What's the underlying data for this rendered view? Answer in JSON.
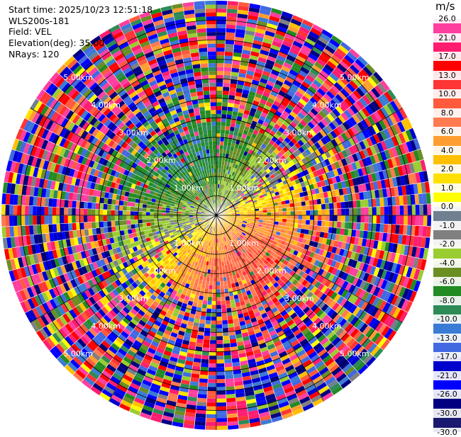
{
  "info": {
    "start_time": "Start time: 2025/10/23 12:51:18",
    "site": "WLS200s-181",
    "field": "Field: VEL",
    "elevation": "Elevation(deg): 35.00",
    "nrays": "NRays: 120"
  },
  "colorbar": {
    "unit": "m/s",
    "ticks": [
      "26.0",
      "21.0",
      "17.0",
      "13.0",
      "10.0",
      "8.0",
      "6.0",
      "4.0",
      "2.0",
      "1.0",
      "0.0",
      "-1.0",
      "-2.0",
      "-4.0",
      "-6.0",
      "-8.0",
      "-10.0",
      "-13.0",
      "-17.0",
      "-21.0",
      "-26.0",
      "-30.0"
    ],
    "colors": [
      "#ff3fa0",
      "#ff1d6f",
      "#ff0000",
      "#ff3434",
      "#ff5a3c",
      "#ff7a50",
      "#ff9e30",
      "#ffc000",
      "#ffe000",
      "#ffff00",
      "#708090",
      "#808080",
      "#9acd32",
      "#6b8e23",
      "#228b22",
      "#2e8b57",
      "#3a7bd5",
      "#4169e1",
      "#0000cd",
      "#0000ff",
      "#000080",
      "#191970"
    ]
  },
  "chart_data": {
    "type": "heatmap",
    "projection": "polar (PPI)",
    "field": "VEL",
    "units": "m/s",
    "range_rings_labels": [
      "1.00km",
      "2.00km",
      "3.00km",
      "4.00km",
      "5.00km"
    ],
    "range_max_km": 5.5,
    "gates_per_ray": 55,
    "n_rays": 120,
    "value_range": [
      -30.0,
      26.0
    ],
    "pattern": "approaching (yellow/orange, positive) sector east to south-east, receding (green/blue, negative) sector west to north-west; noisy random values beyond ~2.5 km"
  }
}
